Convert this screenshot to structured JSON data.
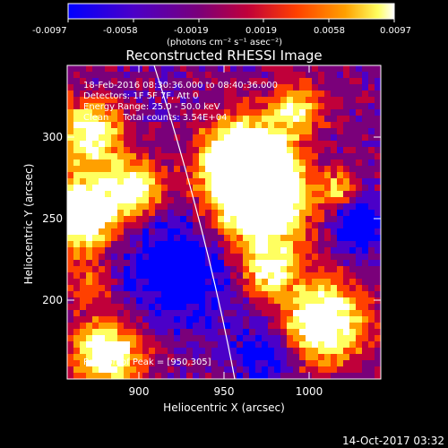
{
  "colorbar": {
    "tick_labels": [
      "-0.0097",
      "-0.0058",
      "-0.0019",
      "0.0019",
      "0.0058",
      "0.0097"
    ],
    "unit_label": "(photons cm⁻² s⁻¹ asec⁻²)",
    "colors": [
      "#0000ff",
      "#4b00c8",
      "#7a007a",
      "#c0003a",
      "#ff4000",
      "#ffa000",
      "#ffff60",
      "#ffffff"
    ]
  },
  "image": {
    "title": "Reconstructed RHESSI Image",
    "info": {
      "time_range": "18-Feb-2016 08:30:36.000 to 08:40:36.000",
      "detectors": "Detectors: 1F 5F 7F, Att 0",
      "energy_range": "Energy Range: 25.0 - 50.0 keV",
      "method_counts": "Clean     Total counts: 3.54E+04"
    },
    "peak_label": "Position of Peak = [950,305]",
    "x_axis": {
      "label": "Heliocentric X (arcsec)",
      "ticks": [
        "900",
        "950",
        "1000"
      ],
      "range": [
        860,
        1045
      ]
    },
    "y_axis": {
      "label": "Heliocentric Y (arcsec)",
      "ticks": [
        "200",
        "250",
        "300"
      ],
      "range": [
        150,
        333
      ]
    }
  },
  "footer": {
    "timestamp": "14-Oct-2017 03:32"
  }
}
